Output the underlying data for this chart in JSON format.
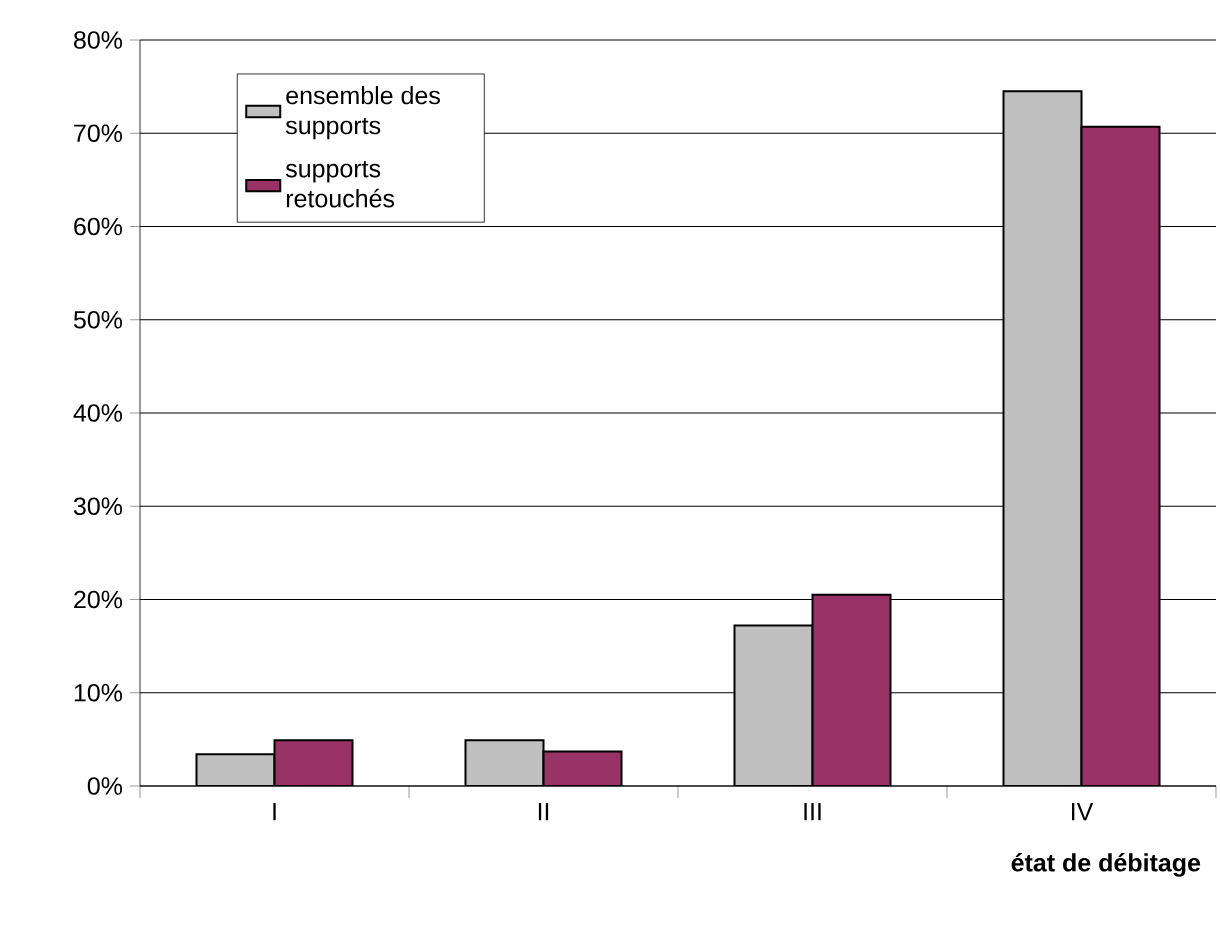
{
  "chart_data": {
    "type": "bar",
    "xlabel": "état de débitage",
    "categories": [
      "I",
      "II",
      "III",
      "IV"
    ],
    "series": [
      {
        "name": "ensemble des supports",
        "color": "#c0c0c0",
        "values": [
          3.4,
          4.9,
          17.2,
          74.5
        ]
      },
      {
        "name": "supports retouchés",
        "color": "#993366",
        "values": [
          4.9,
          3.7,
          20.5,
          70.7
        ]
      }
    ],
    "ylim": [
      0,
      80
    ],
    "yticks": [
      {
        "value": 0,
        "label": "0%"
      },
      {
        "value": 10,
        "label": "10%"
      },
      {
        "value": 20,
        "label": "20%"
      },
      {
        "value": 30,
        "label": "30%"
      },
      {
        "value": 40,
        "label": "40%"
      },
      {
        "value": 50,
        "label": "50%"
      },
      {
        "value": 60,
        "label": "60%"
      },
      {
        "value": 70,
        "label": "70%"
      },
      {
        "value": 80,
        "label": "80%"
      }
    ],
    "grid": "y",
    "legend": "top left"
  }
}
